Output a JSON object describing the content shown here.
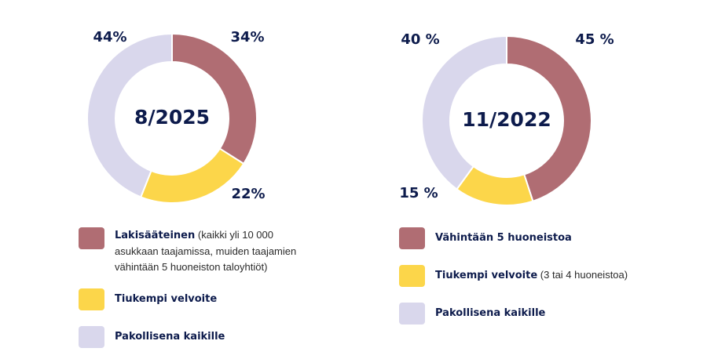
{
  "chart_data": [
    {
      "type": "pie",
      "center_label": "8/2025",
      "slices": [
        {
          "label": "Lakisääteinen",
          "value": 34,
          "display": "34%",
          "color": "#b06d73"
        },
        {
          "label": "Tiukempi velvoite",
          "value": 22,
          "display": "22%",
          "color": "#fcd64a"
        },
        {
          "label": "Pakollisena kaikille",
          "value": 44,
          "display": "44%",
          "color": "#d9d7ec"
        }
      ],
      "legend": [
        {
          "title": "Lakisääteinen",
          "detail": "(kaikki yli 10 000 asukkaan taajamissa, muiden taajamien vähintään 5 huoneiston taloyhtiöt)",
          "color": "#b06d73"
        },
        {
          "title": "Tiukempi velvoite",
          "detail": "",
          "color": "#fcd64a"
        },
        {
          "title": "Pakollisena kaikille",
          "detail": "",
          "color": "#d9d7ec"
        }
      ]
    },
    {
      "type": "pie",
      "center_label": "11/2022",
      "slices": [
        {
          "label": "Vähintään 5 huoneistoa",
          "value": 45,
          "display": "45 %",
          "color": "#b06d73"
        },
        {
          "label": "Tiukempi velvoite",
          "value": 15,
          "display": "15 %",
          "color": "#fcd64a"
        },
        {
          "label": "Pakollisena kaikille",
          "value": 40,
          "display": "40 %",
          "color": "#d9d7ec"
        }
      ],
      "legend": [
        {
          "title": "Vähintään 5 huoneistoa",
          "detail": "",
          "color": "#b06d73"
        },
        {
          "title": "Tiukempi velvoite",
          "detail": "(3 tai 4 huoneistoa)",
          "color": "#fcd64a"
        },
        {
          "title": "Pakollisena kaikille",
          "detail": "",
          "color": "#d9d7ec"
        }
      ]
    }
  ]
}
